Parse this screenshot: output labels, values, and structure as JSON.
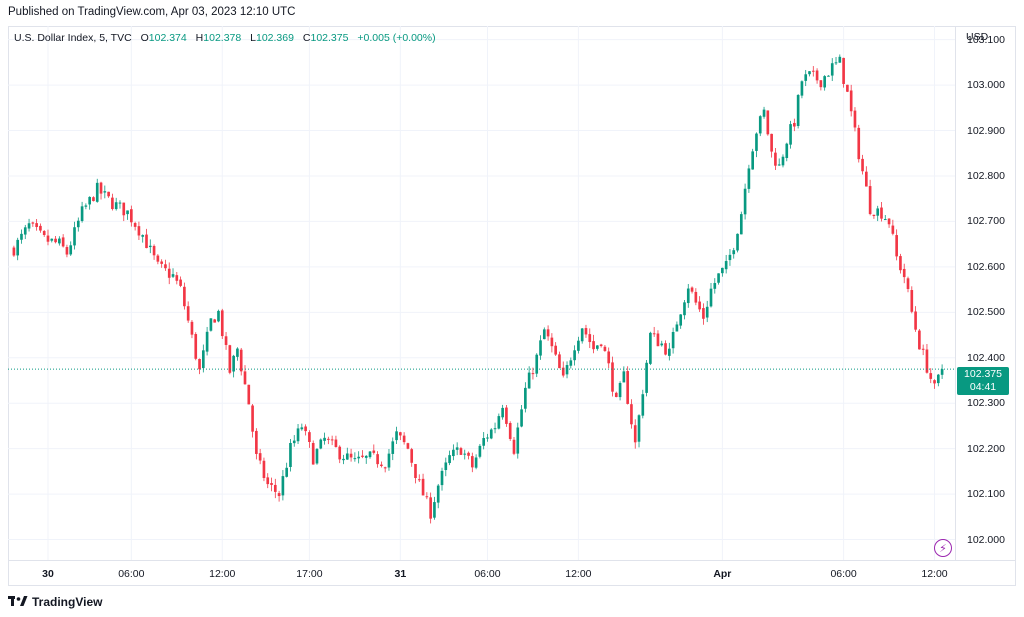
{
  "header": {
    "published": "Published on TradingView.com, Apr 03, 2023 12:10 UTC"
  },
  "legend": {
    "symbol": "U.S. Dollar Index, 5, TVC",
    "o_label": "O",
    "o_value": "102.374",
    "h_label": "H",
    "h_value": "102.378",
    "l_label": "L",
    "l_value": "102.369",
    "c_label": "C",
    "c_value": "102.375",
    "change": "+0.005 (+0.00%)"
  },
  "price_axis": {
    "currency": "USD"
  },
  "last_price": {
    "value": "102.375",
    "countdown": "04:41"
  },
  "brand": {
    "name": "TradingView"
  },
  "colors": {
    "up": "#089981",
    "down": "#f23645",
    "grid": "#f0f3fa",
    "badge": "#089981",
    "accent": "#9c27b0"
  },
  "icons": [
    "bolt-icon",
    "tradingview-logo-icon"
  ],
  "chart_data": {
    "type": "candlestick",
    "title": "U.S. Dollar Index, 5, TVC",
    "ylabel": "USD",
    "ylim": [
      101.955,
      103.13
    ],
    "y_ticks": [
      103.1,
      103.0,
      102.9,
      102.8,
      102.7,
      102.6,
      102.5,
      102.4,
      102.3,
      102.2,
      102.1,
      102.0
    ],
    "y_tick_labels": [
      "103.100",
      "103.000",
      "102.900",
      "102.800",
      "102.700",
      "102.600",
      "102.500",
      "102.400",
      "102.300",
      "102.200",
      "102.100",
      "102.000"
    ],
    "x_ticks": [
      "30",
      "06:00",
      "12:00",
      "17:00",
      "31",
      "06:00",
      "12:00",
      "Apr",
      "06:00",
      "12:00"
    ],
    "x_tick_index": [
      9,
      31,
      55,
      78,
      102,
      125,
      149,
      187,
      219,
      243
    ],
    "x_major": [
      "30",
      "31",
      "Apr"
    ],
    "close_path": [
      [
        0,
        102.64
      ],
      [
        4,
        102.69
      ],
      [
        8,
        102.66
      ],
      [
        12,
        102.65
      ],
      [
        14,
        102.63
      ],
      [
        18,
        102.72
      ],
      [
        22,
        102.77
      ],
      [
        26,
        102.74
      ],
      [
        30,
        102.72
      ],
      [
        34,
        102.67
      ],
      [
        38,
        102.6
      ],
      [
        42,
        102.58
      ],
      [
        44,
        102.55
      ],
      [
        46,
        102.48
      ],
      [
        49,
        102.37
      ],
      [
        52,
        102.48
      ],
      [
        54,
        102.5
      ],
      [
        57,
        102.37
      ],
      [
        59,
        102.42
      ],
      [
        62,
        102.3
      ],
      [
        64,
        102.18
      ],
      [
        67,
        102.12
      ],
      [
        70,
        102.1
      ],
      [
        73,
        102.2
      ],
      [
        76,
        102.25
      ],
      [
        79,
        102.18
      ],
      [
        82,
        102.22
      ],
      [
        86,
        102.19
      ],
      [
        90,
        102.17
      ],
      [
        94,
        102.18
      ],
      [
        98,
        102.17
      ],
      [
        101,
        102.23
      ],
      [
        104,
        102.2
      ],
      [
        107,
        102.12
      ],
      [
        110,
        102.06
      ],
      [
        112,
        102.12
      ],
      [
        115,
        102.18
      ],
      [
        118,
        102.2
      ],
      [
        121,
        102.16
      ],
      [
        124,
        102.22
      ],
      [
        127,
        102.25
      ],
      [
        129,
        102.3
      ],
      [
        132,
        102.2
      ],
      [
        135,
        102.33
      ],
      [
        138,
        102.4
      ],
      [
        140,
        102.46
      ],
      [
        142,
        102.42
      ],
      [
        145,
        102.35
      ],
      [
        148,
        102.43
      ],
      [
        150,
        102.47
      ],
      [
        153,
        102.42
      ],
      [
        155,
        102.44
      ],
      [
        157,
        102.38
      ],
      [
        159,
        102.3
      ],
      [
        161,
        102.36
      ],
      [
        164,
        102.21
      ],
      [
        166,
        102.33
      ],
      [
        168,
        102.45
      ],
      [
        171,
        102.43
      ],
      [
        173,
        102.41
      ],
      [
        175,
        102.48
      ],
      [
        178,
        102.56
      ],
      [
        180,
        102.52
      ],
      [
        182,
        102.49
      ],
      [
        184,
        102.55
      ],
      [
        186,
        102.58
      ],
      [
        188,
        102.6
      ],
      [
        190,
        102.65
      ],
      [
        192,
        102.72
      ],
      [
        194,
        102.83
      ],
      [
        196,
        102.9
      ],
      [
        198,
        102.94
      ],
      [
        200,
        102.85
      ],
      [
        202,
        102.82
      ],
      [
        204,
        102.88
      ],
      [
        206,
        102.92
      ],
      [
        208,
        103.01
      ],
      [
        210,
        103.02
      ],
      [
        213,
        103.01
      ],
      [
        216,
        103.04
      ],
      [
        218,
        103.05
      ],
      [
        220,
        102.98
      ],
      [
        223,
        102.85
      ],
      [
        226,
        102.73
      ],
      [
        229,
        102.72
      ],
      [
        231,
        102.7
      ],
      [
        233,
        102.62
      ],
      [
        235,
        102.58
      ],
      [
        237,
        102.5
      ],
      [
        239,
        102.43
      ],
      [
        241,
        102.38
      ],
      [
        243,
        102.33
      ],
      [
        245,
        102.375
      ]
    ],
    "last_value": 102.375
  }
}
